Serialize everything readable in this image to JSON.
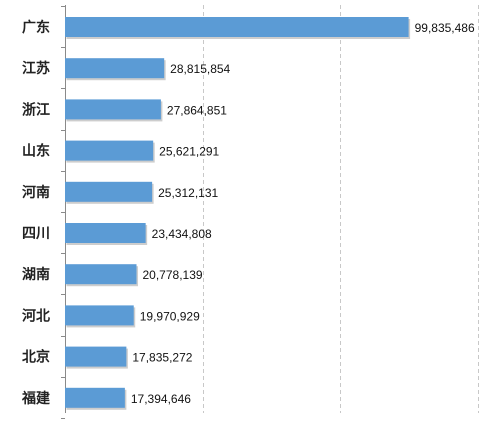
{
  "colors": {
    "bar": "#5b9bd5",
    "bar_shadow": "#b8b8b8",
    "axis": "#8a8a8a",
    "grid": "#c8c8c8",
    "text": "#222222"
  },
  "chart_data": {
    "type": "bar",
    "orientation": "horizontal",
    "categories": [
      "广东",
      "江苏",
      "浙江",
      "山东",
      "河南",
      "四川",
      "湖南",
      "河北",
      "北京",
      "福建"
    ],
    "values": [
      99835486,
      28815854,
      27864851,
      25621291,
      25312131,
      23434808,
      20778139,
      19970929,
      17835272,
      17394646
    ],
    "value_labels": [
      "99,835,486",
      "28,815,854",
      "27,864,851",
      "25,621,291",
      "25,312,131",
      "23,434,808",
      "20,778,139",
      "19,970,929",
      "17,835,272",
      "17,394,646"
    ],
    "xlim": [
      0,
      120000000
    ],
    "grid": "vertical dashed",
    "legend": "none"
  }
}
